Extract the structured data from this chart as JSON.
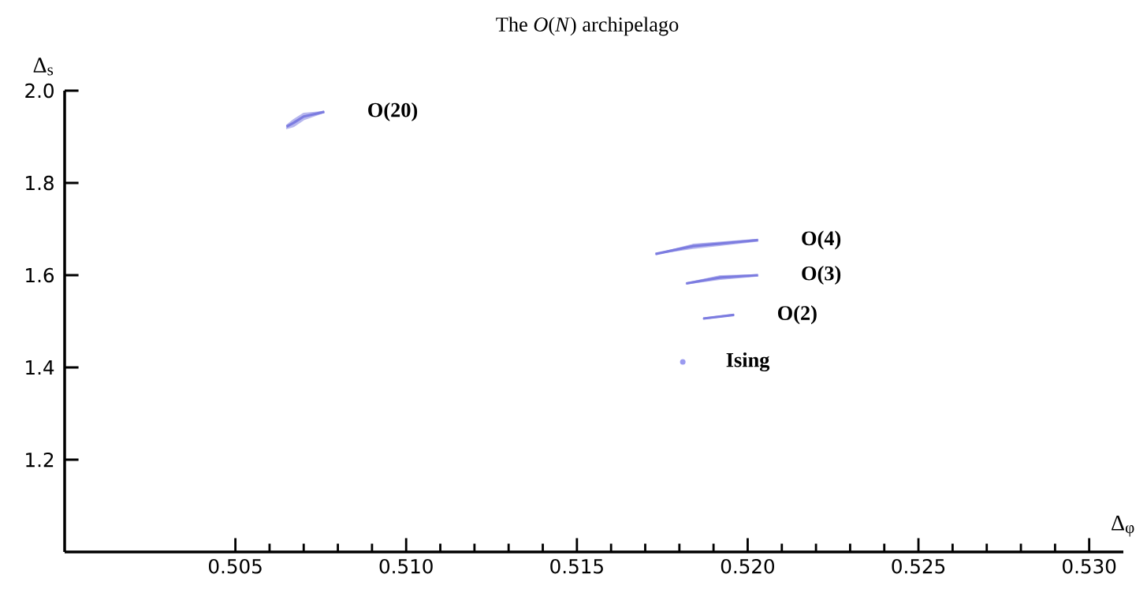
{
  "chart_data": {
    "type": "line",
    "title": "The *O*(*N*) archipelago",
    "xlabel": "Δ$_{φ}$",
    "ylabel": "Δ$_{s}$",
    "xlim": [
      0.5,
      0.531
    ],
    "ylim": [
      1.0,
      2.0
    ],
    "xticks": [
      {
        "value": 0.505,
        "label": "0.505"
      },
      {
        "value": 0.51,
        "label": "0.510"
      },
      {
        "value": 0.515,
        "label": "0.515"
      },
      {
        "value": 0.52,
        "label": "0.520"
      },
      {
        "value": 0.525,
        "label": "0.525"
      },
      {
        "value": 0.53,
        "label": "0.530"
      }
    ],
    "yticks": [
      {
        "value": 1.2,
        "label": "1.2"
      },
      {
        "value": 1.4,
        "label": "1.4"
      },
      {
        "value": 1.6,
        "label": "1.6"
      },
      {
        "value": 1.8,
        "label": "1.8"
      },
      {
        "value": 2.0,
        "label": "2.0"
      }
    ],
    "series": [
      {
        "color": "#7c7ce0",
        "x": [
          0.5065,
          0.5067,
          0.507,
          0.5076
        ],
        "values": [
          1.922,
          1.93,
          1.944,
          1.954
        ],
        "lower": [
          1.918,
          1.922,
          1.937,
          1.953
        ],
        "upper": [
          1.925,
          1.937,
          1.951,
          1.955
        ]
      },
      {
        "color": "#7c7ce0",
        "x": [
          0.5173,
          0.5184,
          0.5203
        ],
        "values": [
          1.646,
          1.663,
          1.676
        ],
        "lower": [
          1.646,
          1.658,
          1.674
        ],
        "upper": [
          1.646,
          1.667,
          1.678
        ]
      },
      {
        "color": "#7c7ce0",
        "x": [
          0.5182,
          0.5192,
          0.5203
        ],
        "values": [
          1.582,
          1.595,
          1.6
        ],
        "lower": [
          1.581,
          1.591,
          1.598
        ],
        "upper": [
          1.583,
          1.599,
          1.601
        ]
      },
      {
        "color": "#7c7ce0",
        "x": [
          0.5187,
          0.5196
        ],
        "values": [
          1.506,
          1.514
        ],
        "lower": [
          1.505,
          1.513
        ],
        "upper": [
          1.507,
          1.515
        ]
      },
      {
        "type": "scatter",
        "marker": "circle",
        "color": "#9a9af0",
        "x": [
          0.5181
        ],
        "values": [
          1.412
        ]
      }
    ],
    "annotations": [
      "O(20)",
      "O(4)",
      "O(3)",
      "O(2)",
      "Ising"
    ]
  }
}
